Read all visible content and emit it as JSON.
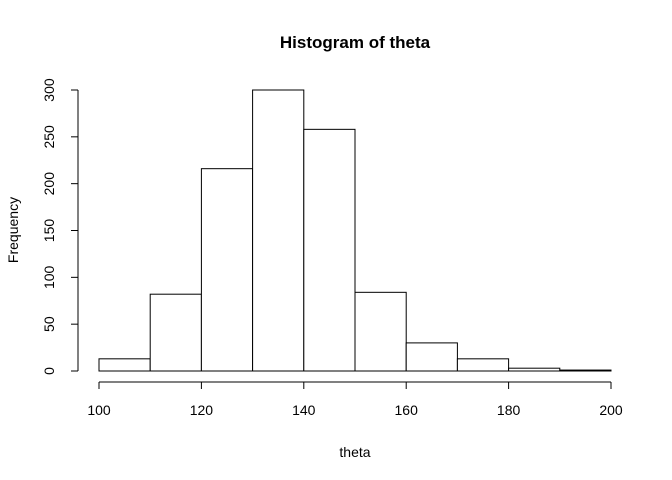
{
  "chart_data": {
    "type": "bar",
    "title": "Histogram of theta",
    "xlabel": "theta",
    "ylabel": "Frequency",
    "bins": [
      {
        "start": 100,
        "end": 110,
        "value": 13
      },
      {
        "start": 110,
        "end": 120,
        "value": 82
      },
      {
        "start": 120,
        "end": 130,
        "value": 216
      },
      {
        "start": 130,
        "end": 140,
        "value": 300
      },
      {
        "start": 140,
        "end": 150,
        "value": 258
      },
      {
        "start": 150,
        "end": 160,
        "value": 84
      },
      {
        "start": 160,
        "end": 170,
        "value": 30
      },
      {
        "start": 170,
        "end": 180,
        "value": 13
      },
      {
        "start": 180,
        "end": 190,
        "value": 3
      },
      {
        "start": 190,
        "end": 200,
        "value": 1
      }
    ],
    "xlim": [
      100,
      200
    ],
    "ylim": [
      0,
      300
    ],
    "xticks": [
      "100",
      "120",
      "140",
      "160",
      "180",
      "200"
    ],
    "yticks": [
      "0",
      "50",
      "100",
      "150",
      "200",
      "250",
      "300"
    ],
    "grid": false,
    "colors": {
      "bar_fill": "#ffffff",
      "bar_stroke": "#000000"
    }
  }
}
